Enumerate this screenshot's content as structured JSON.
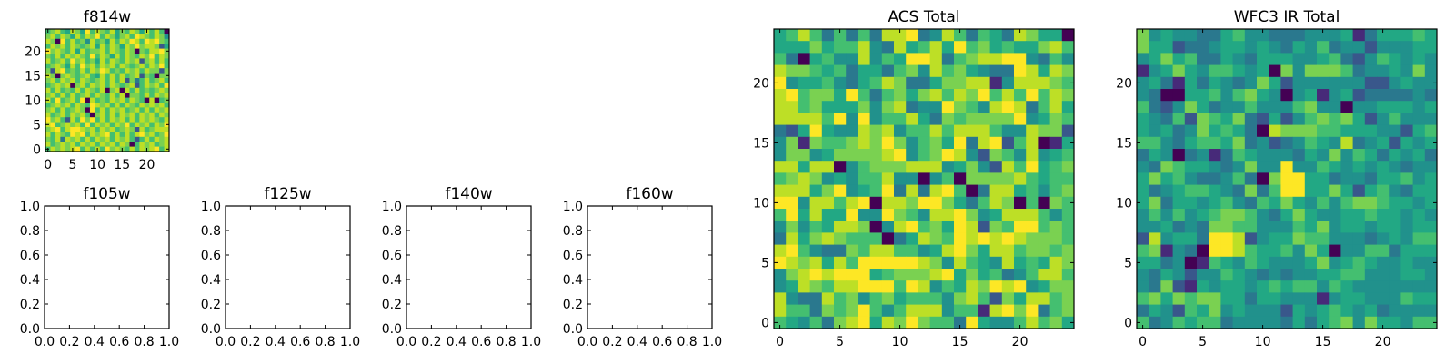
{
  "colormap": {
    "name": "viridis",
    "stops": [
      "#440154",
      "#482475",
      "#414487",
      "#355f8d",
      "#2a788e",
      "#21918c",
      "#22a884",
      "#44bf70",
      "#7ad151",
      "#bddf26",
      "#fde725"
    ],
    "level_positions": [
      0,
      0.12,
      0.27,
      0.4,
      0.5,
      0.6,
      0.7,
      0.8,
      0.9,
      1.0
    ]
  },
  "chart_data": [
    {
      "id": "f814w",
      "type": "heatmap",
      "title": "f814w",
      "xticks": [
        "0",
        "5",
        "10",
        "15",
        "20"
      ],
      "yticks": [
        "0",
        "5",
        "10",
        "15",
        "20"
      ],
      "xlim": [
        -0.5,
        24.5
      ],
      "ylim": [
        -0.5,
        24.5
      ],
      "value_scale": "relative levels 0 (min) to 9 (max); rows listed from y=24 down to y=0",
      "rows": [
        "6786587596876857687586860",
        "7868758687968757869876874",
        "8709686748675868798698976",
        "6878687678586875879788725",
        "9787685867786876870768897",
        "7686878769687586876879687",
        "8678697867586876878278686",
        "6787586978687868767868796",
        "7289676868798676878687727",
        "8707876786586868678276077",
        "7868786876786868273686786",
        "6787807868786876782687869",
        "8686768687680780868676787",
        "7868686786876868077686878",
        "8696786908676878687608067",
        "6787868769878686876878786",
        "7868678709686878678686878",
        "8678687860786868786878687",
        "9786286979686878686878768",
        "8967878696878687968786879",
        "7896899878687867872867888",
        "8687698968789686868978679",
        "7683878686878687862686878",
        "8678786878687868706878678",
        "6878789686869787686878968"
      ]
    },
    {
      "id": "f105w",
      "type": "empty",
      "title": "f105w",
      "xticks": [
        "0.0",
        "0.2",
        "0.4",
        "0.6",
        "0.8",
        "1.0"
      ],
      "yticks": [
        "0.0",
        "0.2",
        "0.4",
        "0.6",
        "0.8",
        "1.0"
      ],
      "xlim": [
        0,
        1
      ],
      "ylim": [
        0,
        1
      ]
    },
    {
      "id": "f125w",
      "type": "empty",
      "title": "f125w",
      "xticks": [
        "0.0",
        "0.2",
        "0.4",
        "0.6",
        "0.8",
        "1.0"
      ],
      "yticks": [
        "0.0",
        "0.2",
        "0.4",
        "0.6",
        "0.8",
        "1.0"
      ],
      "xlim": [
        0,
        1
      ],
      "ylim": [
        0,
        1
      ]
    },
    {
      "id": "f140w",
      "type": "empty",
      "title": "f140w",
      "xticks": [
        "0.0",
        "0.2",
        "0.4",
        "0.6",
        "0.8",
        "1.0"
      ],
      "yticks": [
        "0.0",
        "0.2",
        "0.4",
        "0.6",
        "0.8",
        "1.0"
      ],
      "xlim": [
        0,
        1
      ],
      "ylim": [
        0,
        1
      ]
    },
    {
      "id": "f160w",
      "type": "empty",
      "title": "f160w",
      "xticks": [
        "0.0",
        "0.2",
        "0.4",
        "0.6",
        "0.8",
        "1.0"
      ],
      "yticks": [
        "0.0",
        "0.2",
        "0.4",
        "0.6",
        "0.8",
        "1.0"
      ],
      "xlim": [
        0,
        1
      ],
      "ylim": [
        0,
        1
      ]
    },
    {
      "id": "acs-total",
      "type": "heatmap",
      "title": "ACS Total",
      "xticks": [
        "0",
        "5",
        "10",
        "15",
        "20"
      ],
      "yticks": [
        "0",
        "5",
        "10",
        "15",
        "20"
      ],
      "xlim": [
        -0.5,
        24.5
      ],
      "ylim": [
        -0.5,
        24.5
      ],
      "value_scale": "relative levels 0 (min) to 9 (max); rows listed from y=24 down to y=0",
      "rows": [
        "5686363638893486365387550",
        "5557566843856859675655786",
        "6305644846599836788994364",
        "8776563553674867543398587",
        "9455643568733577881488876",
        "8967759636757868796869687",
        "8867555747834497648983685",
        "8888694946685376777794576",
        "3259544878466868886448772",
        "4717667879746759389268015",
        "4774577778946798427648456",
        "8858804677788845742869567",
        "6787454668440460777786566",
        "8885794569383896038856467",
        "9948868908879975368706076",
        "6958559449764889745888646",
        "4746588704896759827699676",
        "3857876660358769898987776",
        "8964337688664589758867767",
        "9878586999998748654856587",
        "4789899956777895756346886",
        "4587688999698465879894577",
        "8433867467566647862758867",
        "8663767964688846618979367",
        "6546378958797663954468675"
      ]
    },
    {
      "id": "wfc3-ir-total",
      "type": "heatmap",
      "title": "WFC3 IR Total",
      "xticks": [
        "0",
        "5",
        "10",
        "15",
        "20"
      ],
      "yticks": [
        "0",
        "5",
        "10",
        "15",
        "20"
      ],
      "xlim": [
        -0.5,
        24.5
      ],
      "ylim": [
        -0.5,
        24.5
      ],
      "value_scale": "relative levels 0 (min) to 9 (max); rows listed from y=24 down to y=0",
      "rows": [
        "7454433564433344451355565",
        "7552334554543546344244455",
        "4575633543555445632465454",
        "1457546654507477763445474",
        "4531535434752444444224544",
        "4300556467540451452333343",
        "6324753446444674404455545",
        "5436276573252467675246444",
        "5453475653087776655544256",
        "6643566573423465483452545",
        "3540341365444354746535453",
        "4376554347449446545454344",
        "5756433463079955344355645",
        "5345665437369955752564355",
        "5735545643657546467765545",
        "4646456776435754455655454",
        "4453437766444657455455455",
        "2845539982455766444345466",
        "6714309986556475044663555",
        "5534016546544457456544544",
        "4354244654343445566444554",
        "4372154554565664654444444",
        "6757677553554441455444655",
        "3542657454442545654534444",
        "6346566344443535674755466"
      ]
    }
  ]
}
